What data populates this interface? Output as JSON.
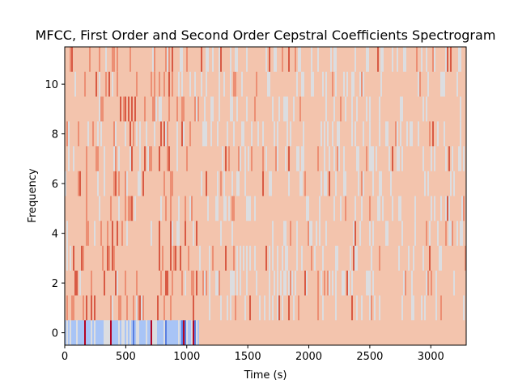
{
  "chart_data": {
    "type": "heatmap",
    "title": "MFCC, First Order and Second Order Cepstral Coefficients Spectrogram",
    "xlabel": "Time (s)",
    "ylabel": "Frequency",
    "xlim": [
      0,
      3290
    ],
    "ylim": [
      -0.5,
      11.5
    ],
    "xticks": [
      0,
      500,
      1000,
      1500,
      2000,
      2500,
      3000
    ],
    "yticks": [
      0,
      2,
      4,
      6,
      8,
      10
    ],
    "grid": false,
    "colormap": "coolwarm",
    "colors": {
      "background": "#f3c4ad",
      "strong_red": "#d85a44",
      "mid_red": "#ec8f74",
      "light_cool": "#dcdde0",
      "blue": "#a8c4f6",
      "deep_blue": "#5a7fe0",
      "dark_red": "#b40426"
    },
    "rows": 12,
    "active_until": 1100
  }
}
